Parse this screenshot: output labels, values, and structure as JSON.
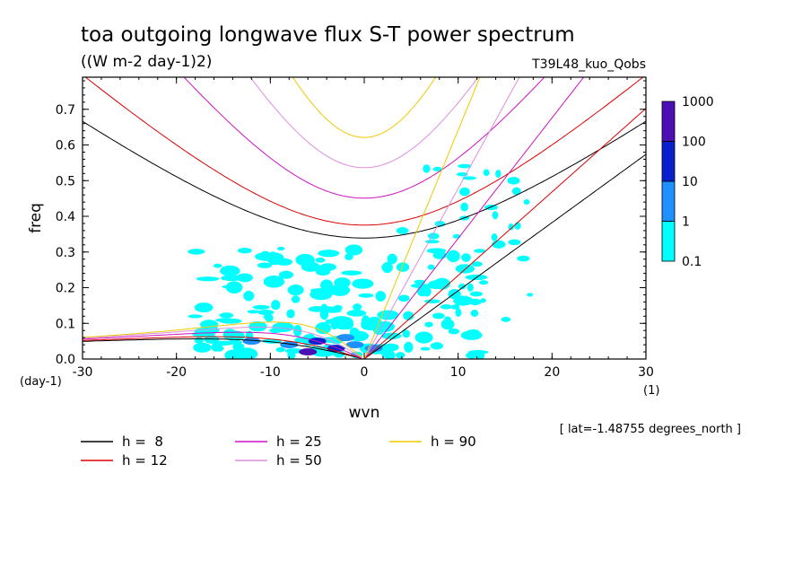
{
  "chart_data": {
    "type": "line",
    "title": "toa outgoing longwave flux S-T power spectrum",
    "subtitle": "((W m-2 day-1)2)",
    "run_label": "T39L48_kuo_Qobs",
    "xlabel": "wvn",
    "ylabel": "freq",
    "x_unit": "(1)",
    "y_unit": "(day-1)",
    "xlim": [
      -30,
      30
    ],
    "ylim": [
      0,
      0.79
    ],
    "x_ticks": [
      -30,
      -20,
      -10,
      0,
      10,
      20,
      30
    ],
    "x_tick_labels": [
      "-30",
      "-20",
      "-10",
      "0",
      "10",
      "20",
      "30"
    ],
    "y_ticks": [
      0,
      0.1,
      0.2,
      0.3,
      0.4,
      0.5,
      0.6,
      0.7
    ],
    "y_tick_labels": [
      "0.0",
      "0.1",
      "0.2",
      "0.3",
      "0.4",
      "0.5",
      "0.6",
      "0.7"
    ],
    "lat_note": "[ lat=-1.48755 degrees_north ]",
    "colorbar": {
      "levels": [
        "0.1",
        "1",
        "10",
        "100",
        "1000"
      ],
      "colors": [
        "#00ffff",
        "#1e90ff",
        "#0a1fcc",
        "#4b0fb4"
      ]
    },
    "series": [
      {
        "name": "h =  8",
        "color": "#000000",
        "h": 8
      },
      {
        "name": "h = 12",
        "color": "#dd0000",
        "h": 12
      },
      {
        "name": "h = 25",
        "color": "#d010c0",
        "h": 25
      },
      {
        "name": "h = 50",
        "color": "#dc8fdc",
        "h": 50
      },
      {
        "name": "h = 90",
        "color": "#f0c800",
        "h": 90
      }
    ],
    "power_blobs": [
      {
        "x": -12,
        "y": 0.05,
        "level": 1
      },
      {
        "x": -8,
        "y": 0.04,
        "level": 1
      },
      {
        "x": -5,
        "y": 0.05,
        "level": 2
      },
      {
        "x": -3,
        "y": 0.03,
        "level": 2
      },
      {
        "x": -1,
        "y": 0.04,
        "level": 1
      },
      {
        "x": 1,
        "y": 0.03,
        "level": 1
      },
      {
        "x": -6,
        "y": 0.02,
        "level": 3
      },
      {
        "x": -2,
        "y": 0.06,
        "level": 1
      }
    ]
  }
}
